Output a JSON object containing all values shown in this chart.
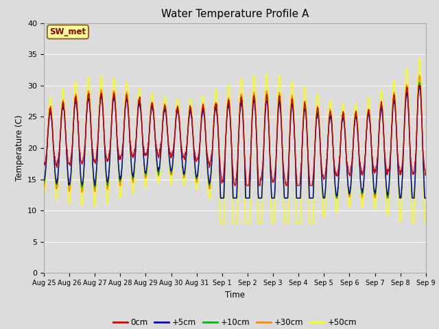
{
  "title": "Water Temperature Profile A",
  "xlabel": "Time",
  "ylabel": "Temperature (C)",
  "ylim": [
    0,
    40
  ],
  "yticks": [
    0,
    5,
    10,
    15,
    20,
    25,
    30,
    35,
    40
  ],
  "annotation_text": "SW_met",
  "annotation_color": "#8B0000",
  "annotation_bg": "#FFFF99",
  "annotation_border": "#996633",
  "line_colors": {
    "0cm": "#DD0000",
    "+5cm": "#0000CC",
    "+10cm": "#00BB00",
    "+30cm": "#FF8800",
    "+50cm": "#FFFF00"
  },
  "line_labels": [
    "0cm",
    "+5cm",
    "+10cm",
    "+30cm",
    "+50cm"
  ],
  "xtick_labels": [
    "Aug 25",
    "Aug 26",
    "Aug 27",
    "Aug 28",
    "Aug 29",
    "Aug 30",
    "Aug 31",
    "Sep 1",
    "Sep 2",
    "Sep 3",
    "Sep 4",
    "Sep 5",
    "Sep 6",
    "Sep 7",
    "Sep 8",
    "Sep 9"
  ],
  "bg_color": "#DCDCDC",
  "grid_color": "#FFFFFF",
  "linewidth": 1.0,
  "n_days": 15,
  "n_points": 1800,
  "seed": 12
}
